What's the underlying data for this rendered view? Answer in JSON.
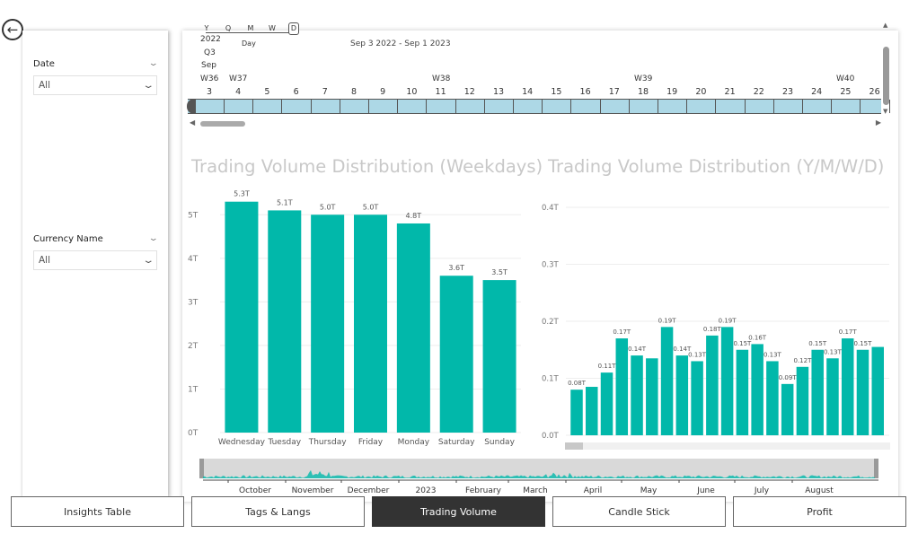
{
  "filters": {
    "date": {
      "label": "Date",
      "value": "All"
    },
    "currency": {
      "label": "Currency Name",
      "value": "All"
    }
  },
  "timeline": {
    "hierarchy": [
      "Y",
      "Q",
      "M",
      "W",
      "D"
    ],
    "hierarchy_selected": "D",
    "level_label": "Day",
    "range_text": "Sep 3 2022 - Sep 1 2023",
    "year": "2022",
    "quarter": "Q3",
    "month": "Sep",
    "weeks": [
      "W36",
      "W37",
      "W38",
      "W39",
      "W40"
    ],
    "days": [
      "3",
      "4",
      "5",
      "6",
      "7",
      "8",
      "9",
      "10",
      "11",
      "12",
      "13",
      "14",
      "15",
      "16",
      "17",
      "18",
      "19",
      "20",
      "21",
      "22",
      "23",
      "24",
      "25",
      "26"
    ]
  },
  "colors": {
    "bar": "#01b8aa",
    "timeline": "#add8e6",
    "active_tab": "#333333"
  },
  "chart_data": [
    {
      "type": "bar",
      "title": "Trading Volume Distribution (Weekdays)",
      "categories": [
        "Wednesday",
        "Tuesday",
        "Thursday",
        "Friday",
        "Monday",
        "Saturday",
        "Sunday"
      ],
      "values": [
        5.3,
        5.1,
        5.0,
        5.0,
        4.8,
        3.6,
        3.5
      ],
      "data_labels": [
        "5.3T",
        "5.1T",
        "5.0T",
        "5.0T",
        "4.8T",
        "3.6T",
        "3.5T"
      ],
      "yticks": [
        "0T",
        "1T",
        "2T",
        "3T",
        "4T",
        "5T"
      ],
      "ylim": [
        0,
        5.5
      ],
      "unit": "T",
      "grid": true
    },
    {
      "type": "bar",
      "title": "Trading Volume Distribution (Y/M/W/D)",
      "values": [
        0.08,
        0.085,
        0.11,
        0.17,
        0.14,
        0.135,
        0.19,
        0.14,
        0.13,
        0.175,
        0.19,
        0.15,
        0.16,
        0.13,
        0.09,
        0.12,
        0.15,
        0.135,
        0.17,
        0.15,
        0.155
      ],
      "data_labels": [
        "0.08T",
        "",
        "0.11T",
        "0.17T",
        "0.14T",
        "",
        "0.19T",
        "0.14T",
        "0.13T",
        "0.18T",
        "0.19T",
        "0.15T",
        "0.16T",
        "0.13T",
        "0.09T",
        "0.12T",
        "0.15T",
        "0.13T",
        "0.17T",
        "0.15T",
        ""
      ],
      "yticks": [
        "0.0T",
        "0.1T",
        "0.2T",
        "0.3T",
        "0.4T"
      ],
      "ylim": [
        0,
        0.4
      ],
      "unit": "T",
      "grid": true
    }
  ],
  "navigator": {
    "months": [
      "October",
      "November",
      "December",
      "2023",
      "February",
      "March",
      "April",
      "May",
      "June",
      "July",
      "August"
    ]
  },
  "tabs": [
    "Insights Table",
    "Tags & Langs",
    "Trading Volume",
    "Candle Stick",
    "Profit"
  ],
  "active_tab": "Trading Volume"
}
